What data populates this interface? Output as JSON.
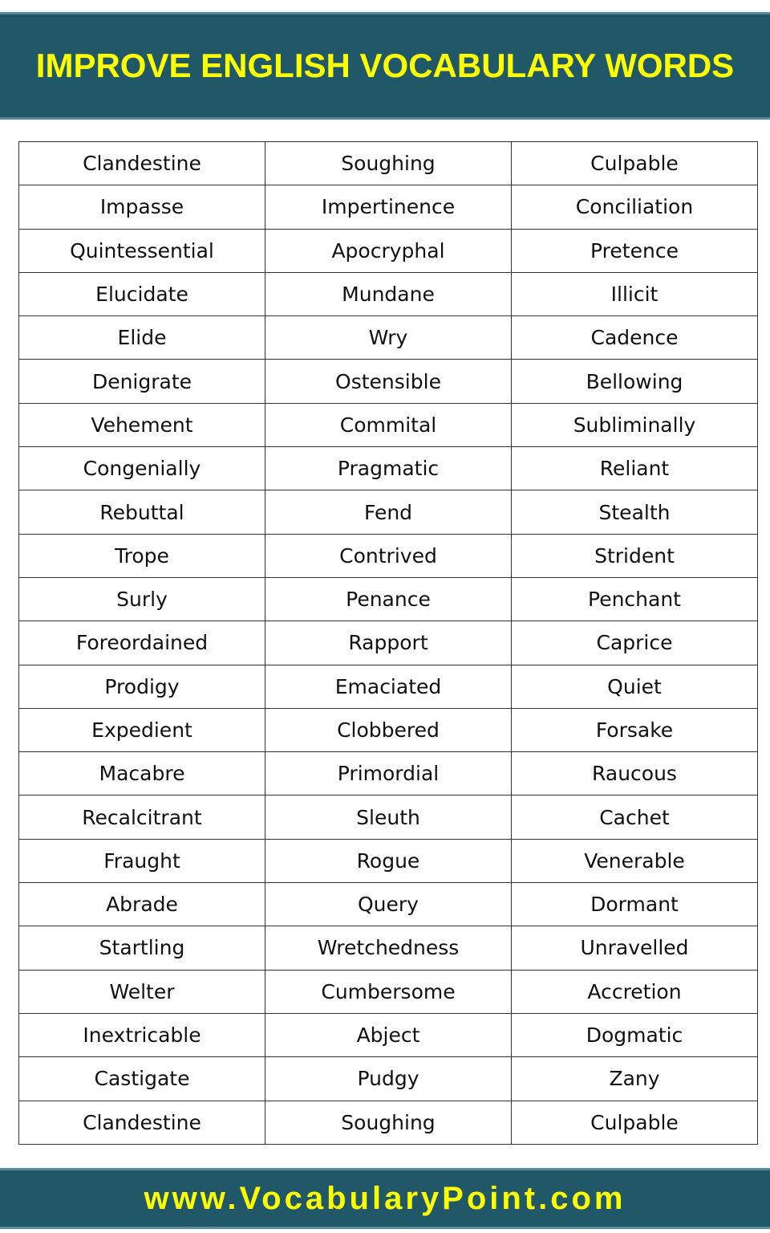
{
  "header": {
    "title": "IMPROVE ENGLISH VOCABULARY WORDS"
  },
  "table": {
    "rows": [
      [
        "Clandestine",
        "Soughing",
        "Culpable"
      ],
      [
        "Impasse",
        "Impertinence",
        "Conciliation"
      ],
      [
        "Quintessential",
        "Apocryphal",
        "Pretence"
      ],
      [
        "Elucidate",
        "Mundane",
        "Illicit"
      ],
      [
        "Elide",
        "Wry",
        "Cadence"
      ],
      [
        "Denigrate",
        "Ostensible",
        "Bellowing"
      ],
      [
        "Vehement",
        "Commital",
        "Subliminally"
      ],
      [
        "Congenially",
        "Pragmatic",
        "Reliant"
      ],
      [
        "Rebuttal",
        "Fend",
        "Stealth"
      ],
      [
        "Trope",
        "Contrived",
        "Strident"
      ],
      [
        "Surly",
        "Penance",
        "Penchant"
      ],
      [
        "Foreordained",
        "Rapport",
        "Caprice"
      ],
      [
        "Prodigy",
        "Emaciated",
        "Quiet"
      ],
      [
        "Expedient",
        "Clobbered",
        "Forsake"
      ],
      [
        "Macabre",
        "Primordial",
        "Raucous"
      ],
      [
        "Recalcitrant",
        "Sleuth",
        "Cachet"
      ],
      [
        "Fraught",
        "Rogue",
        "Venerable"
      ],
      [
        "Abrade",
        "Query",
        "Dormant"
      ],
      [
        "Startling",
        "Wretchedness",
        "Unravelled"
      ],
      [
        "Welter",
        "Cumbersome",
        "Accretion"
      ],
      [
        "Inextricable",
        "Abject",
        "Dogmatic"
      ],
      [
        "Castigate",
        "Pudgy",
        "Zany"
      ],
      [
        "Clandestine",
        "Soughing",
        "Culpable"
      ]
    ]
  },
  "footer": {
    "url": "www.VocabularyPoint.com"
  }
}
